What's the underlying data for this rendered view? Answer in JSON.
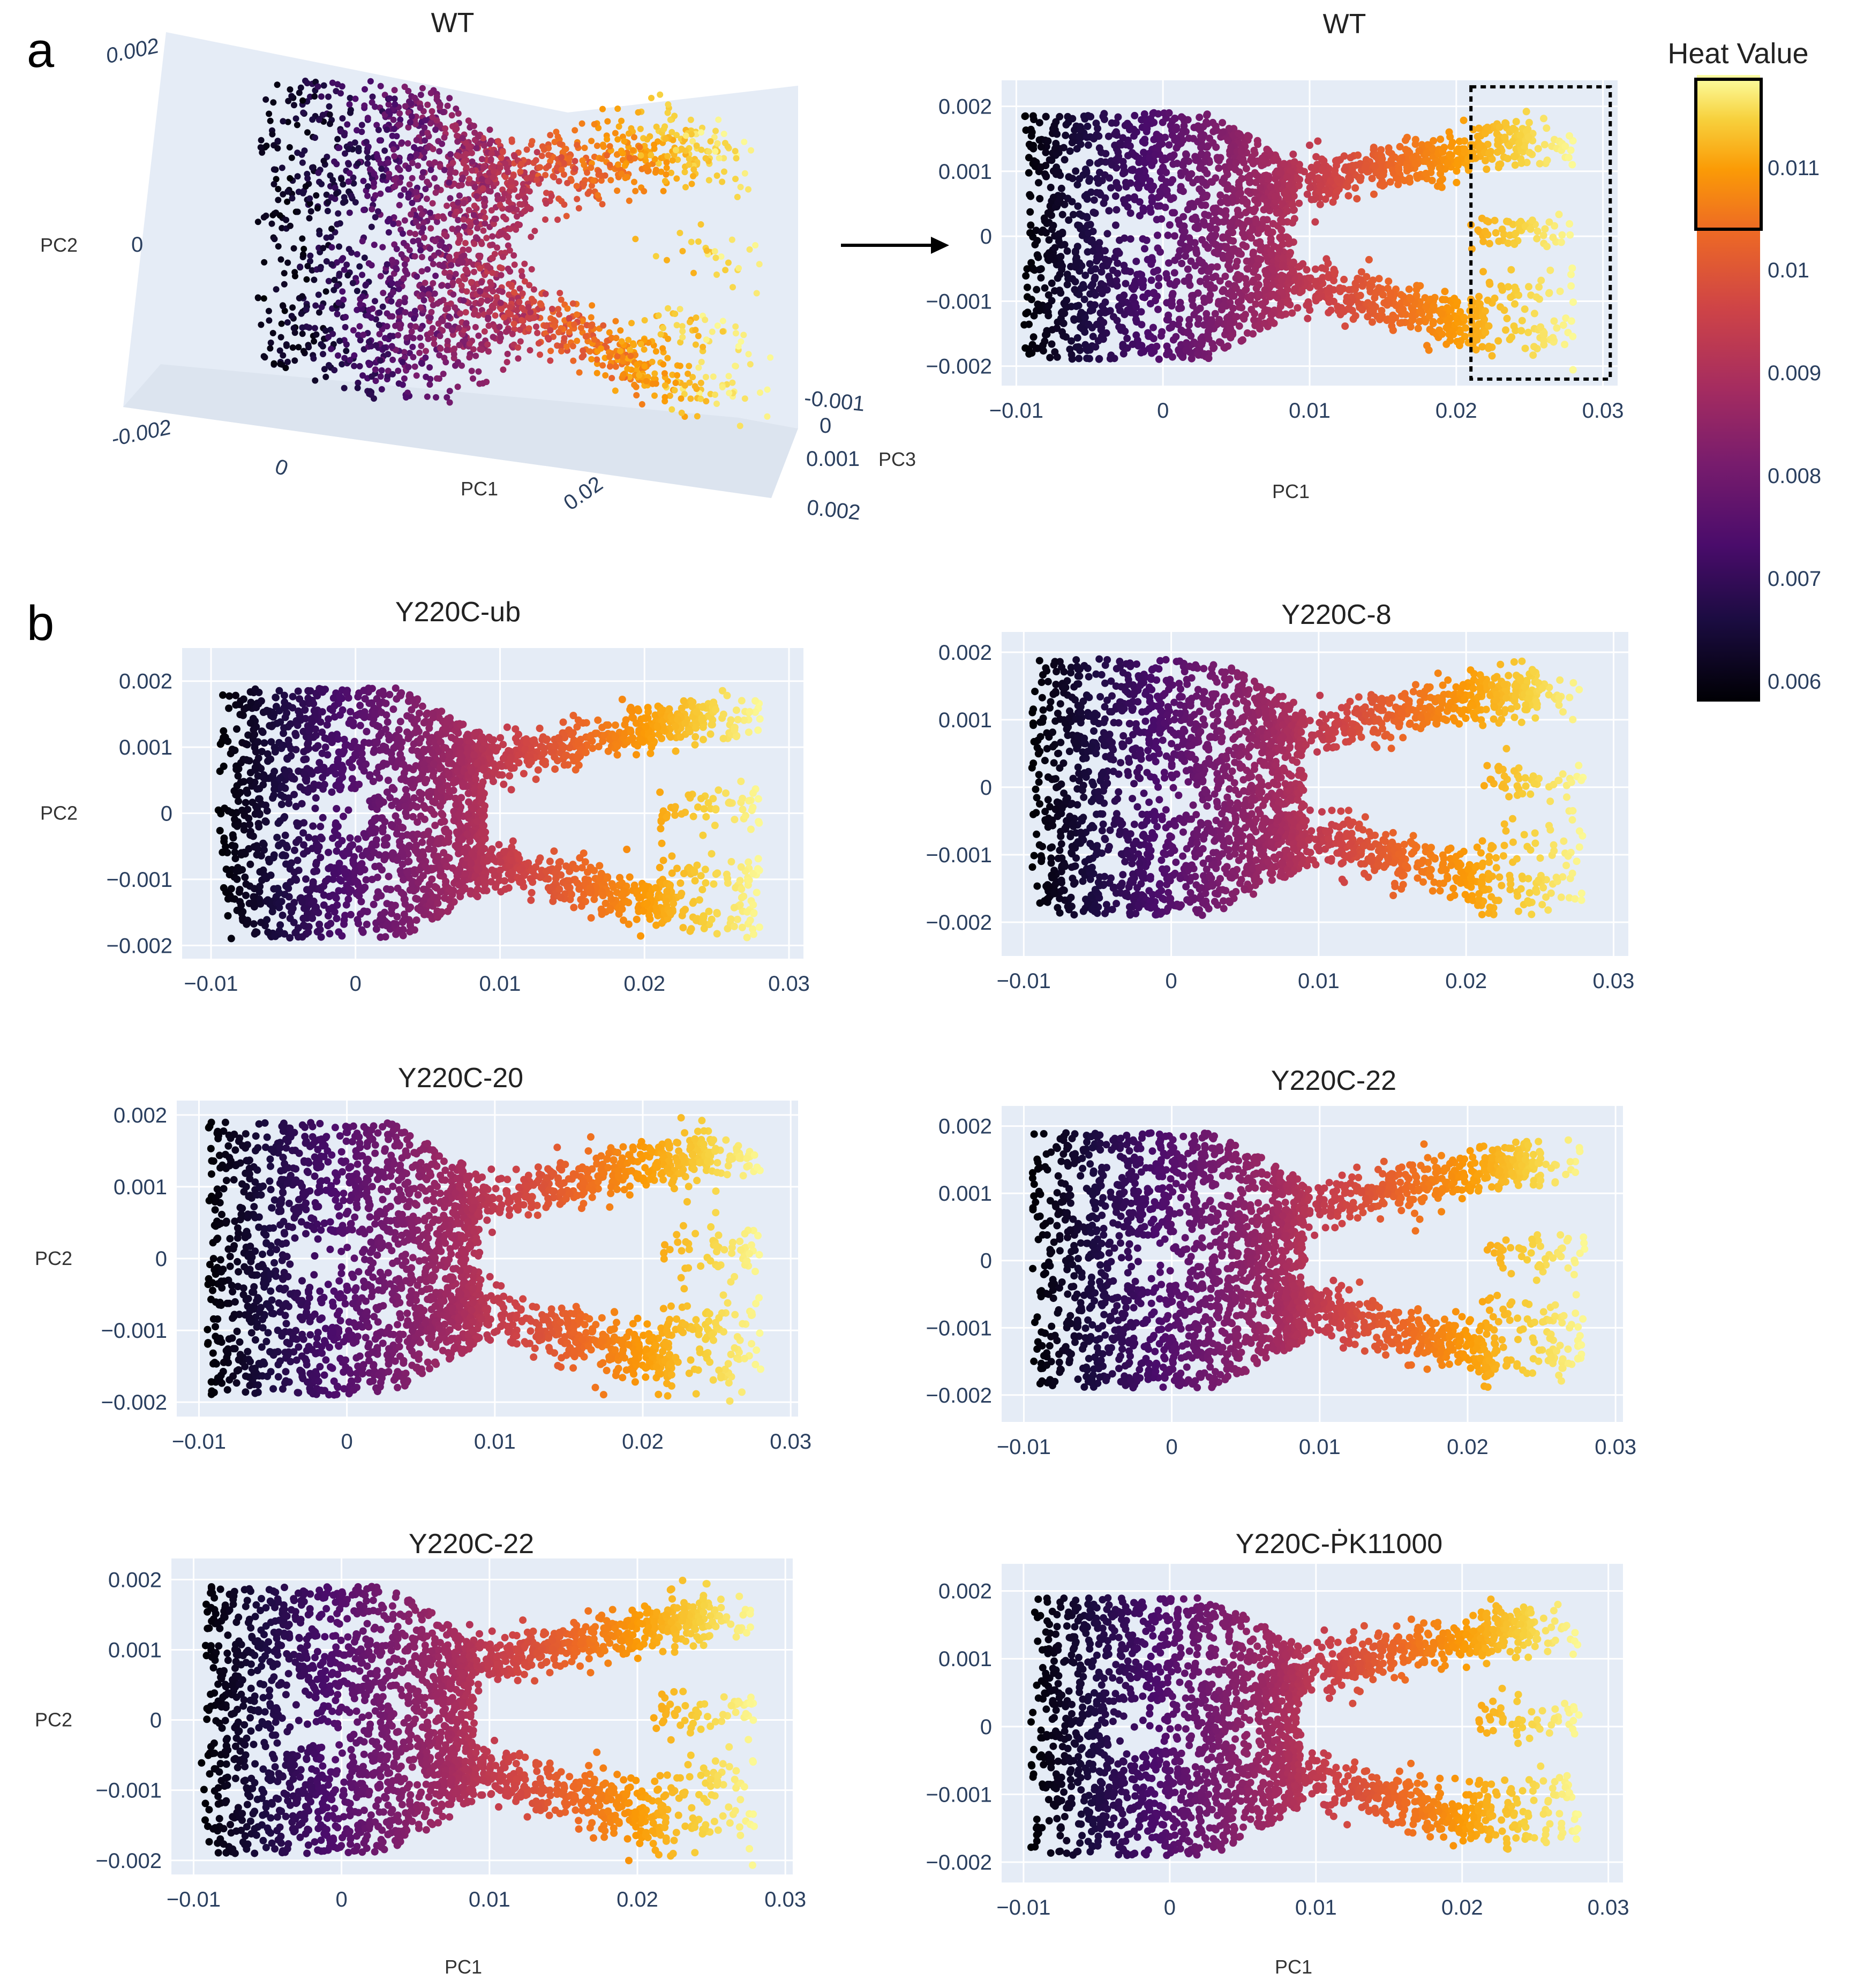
{
  "panels": {
    "a": "a",
    "b": "b"
  },
  "colorbar": {
    "title": "Heat Value",
    "ticks": [
      "0.011",
      "0.01",
      "0.009",
      "0.008",
      "0.007",
      "0.006"
    ]
  },
  "chart_data": [
    {
      "type": "scatter3d",
      "title": "WT",
      "xlabel": "PC1",
      "ylabel": "PC2",
      "zlabel": "PC3",
      "x_ticks": [
        "0",
        "0.02"
      ],
      "y_ticks": [
        "0.002",
        "0",
        "-0.002"
      ],
      "z_ticks": [
        "-0.001",
        "0",
        "0.001",
        "0.002"
      ],
      "color_range": [
        0.006,
        0.0115
      ]
    },
    {
      "type": "scatter",
      "title": "WT",
      "xlabel": "PC1",
      "ylabel": "",
      "xlim": [
        -0.011,
        0.031
      ],
      "ylim": [
        -0.0023,
        0.0024
      ],
      "x_ticks": [
        "−0.01",
        "0",
        "0.01",
        "0.02",
        "0.03"
      ],
      "y_ticks": [
        "0.002",
        "0.001",
        "0",
        "−0.001",
        "−0.002"
      ],
      "highlight_box": {
        "x": [
          0.021,
          0.0305
        ],
        "y": [
          -0.0022,
          0.0023
        ]
      }
    },
    {
      "type": "scatter",
      "title": "Y220C-ub",
      "xlabel": "",
      "ylabel": "PC2",
      "xlim": [
        -0.012,
        0.031
      ],
      "ylim": [
        -0.0022,
        0.0025
      ],
      "x_ticks": [
        "−0.01",
        "0",
        "0.01",
        "0.02",
        "0.03"
      ],
      "y_ticks": [
        "0.002",
        "0.001",
        "0",
        "−0.001",
        "−0.002"
      ]
    },
    {
      "type": "scatter",
      "title": "Y220C-8",
      "xlabel": "",
      "ylabel": "",
      "xlim": [
        -0.0115,
        0.031
      ],
      "ylim": [
        -0.0025,
        0.0023
      ],
      "x_ticks": [
        "−0.01",
        "0",
        "0.01",
        "0.02",
        "0.03"
      ],
      "y_ticks": [
        "0.002",
        "0.001",
        "0",
        "−0.001",
        "−0.002"
      ]
    },
    {
      "type": "scatter",
      "title": "Y220C-20",
      "xlabel": "",
      "ylabel": "PC2",
      "xlim": [
        -0.0115,
        0.0305
      ],
      "ylim": [
        -0.0022,
        0.0022
      ],
      "x_ticks": [
        "−0.01",
        "0",
        "0.01",
        "0.02",
        "0.03"
      ],
      "y_ticks": [
        "0.002",
        "0.001",
        "0",
        "−0.001",
        "−0.002"
      ]
    },
    {
      "type": "scatter",
      "title": "Y220C-22",
      "xlabel": "",
      "ylabel": "",
      "xlim": [
        -0.0115,
        0.0305
      ],
      "ylim": [
        -0.0024,
        0.0023
      ],
      "x_ticks": [
        "−0.01",
        "0",
        "0.01",
        "0.02",
        "0.03"
      ],
      "y_ticks": [
        "0.002",
        "0.001",
        "0",
        "−0.001",
        "−0.002"
      ]
    },
    {
      "type": "scatter",
      "title": "Y220C-22",
      "xlabel": "PC1",
      "ylabel": "PC2",
      "xlim": [
        -0.0115,
        0.0305
      ],
      "ylim": [
        -0.0022,
        0.0023
      ],
      "x_ticks": [
        "−0.01",
        "0",
        "0.01",
        "0.02",
        "0.03"
      ],
      "y_ticks": [
        "0.002",
        "0.001",
        "0",
        "−0.001",
        "−0.002"
      ]
    },
    {
      "type": "scatter",
      "title": "Y220C-ṖK11000",
      "xlabel": "PC1",
      "ylabel": "",
      "xlim": [
        -0.0115,
        0.031
      ],
      "ylim": [
        -0.0023,
        0.0024
      ],
      "x_ticks": [
        "−0.01",
        "0",
        "0.01",
        "0.02",
        "0.03"
      ],
      "y_ticks": [
        "0.002",
        "0.001",
        "0",
        "−0.001",
        "−0.002"
      ]
    }
  ]
}
